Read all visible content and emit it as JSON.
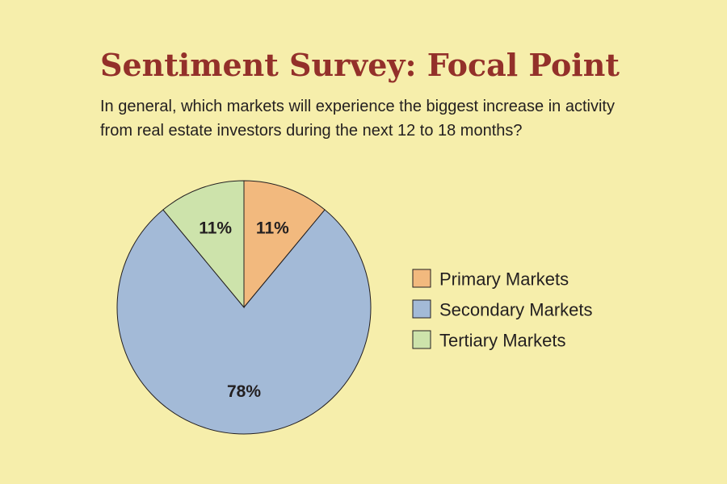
{
  "title": "Sentiment Survey: Focal Point",
  "subtitle": "In general, which markets will experience the biggest increase in activity from real estate investors during the next 12 to 18 months?",
  "colors": {
    "background": "#f6eeab",
    "title": "#93302a",
    "primary": "#f2b97e",
    "secondary": "#a3bad7",
    "tertiary": "#cde3ab",
    "outline": "#231f20"
  },
  "chart_data": {
    "type": "pie",
    "title": "Sentiment Survey: Focal Point",
    "start_angle_deg": 0,
    "direction": "clockwise",
    "legend_position": "right",
    "slices": [
      {
        "label": "Primary Markets",
        "value": 11,
        "value_label": "11%",
        "color": "#f2b97e"
      },
      {
        "label": "Secondary Markets",
        "value": 78,
        "value_label": "78%",
        "color": "#a3bad7"
      },
      {
        "label": "Tertiary Markets",
        "value": 11,
        "value_label": "11%",
        "color": "#cde3ab"
      }
    ]
  }
}
